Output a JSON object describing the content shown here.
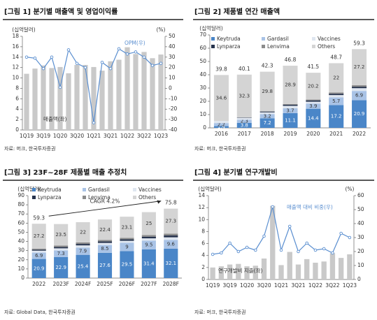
{
  "chart_data": [
    {
      "type": "combo",
      "title": "[그림 1] 분기별 매출액 및 영업이익률",
      "ylabel": "(십억달러)",
      "y2label": "(%)",
      "categories": [
        "1Q19",
        null,
        "3Q19",
        null,
        "1Q20",
        null,
        "3Q20",
        null,
        "1Q21",
        null,
        "3Q21",
        null,
        "1Q22",
        null,
        "3Q22",
        null,
        "1Q23"
      ],
      "series": [
        {
          "name": "매출액(좌)",
          "color": "#c9c9c9",
          "values": [
            10.8,
            11.8,
            12.4,
            11.9,
            12.1,
            10.9,
            12.5,
            12.5,
            12.1,
            11.4,
            13.2,
            13.5,
            15.9,
            14.6,
            15.0,
            13.8,
            14.5
          ]
        },
        {
          "name": "OPM(우)",
          "color": "#5b8fd0",
          "axis": "y2",
          "values": [
            30,
            29,
            19,
            30,
            1,
            37,
            24,
            20,
            -33,
            25,
            19,
            38,
            33,
            35,
            30,
            22,
            24
          ]
        }
      ],
      "ylim": [
        0,
        18
      ],
      "yticks": [
        0,
        2,
        4,
        6,
        8,
        10,
        12,
        14,
        16,
        18
      ],
      "y2lim": [
        -40,
        50
      ],
      "y2ticks": [
        -40,
        -30,
        -20,
        -10,
        0,
        10,
        20,
        30,
        40,
        50
      ],
      "source": "자료: 머크, 한국투자증권"
    },
    {
      "type": "stacked",
      "title": "[그림 2] 제품별 연간 매출액",
      "ylabel": "(십억달러)",
      "categories": [
        "2016",
        "2017",
        "2018",
        "2019",
        "2020",
        "2021",
        "2022"
      ],
      "series": [
        {
          "name": "Keytruda",
          "color": "#4a86c8",
          "show_labels": true,
          "values": [
            1.4,
            3.8,
            7.2,
            11.1,
            14.4,
            17.2,
            20.9
          ]
        },
        {
          "name": "Gardasil",
          "color": "#a9c3e6",
          "show_labels": true,
          "values": [
            2.2,
            2.3,
            3.2,
            3.7,
            3.9,
            5.7,
            6.9
          ]
        },
        {
          "name": "Vaccines",
          "color": "#dfe6f0",
          "values": [
            1.6,
            1.4,
            1.3,
            1.8,
            1.4,
            1.8,
            2.1
          ]
        },
        {
          "name": "Lynparza",
          "color": "#26334d",
          "values": [
            0,
            0.3,
            0.6,
            0.8,
            1.0,
            1.0,
            1.1
          ]
        },
        {
          "name": "Lenvima",
          "color": "#8c8c8c",
          "values": [
            0,
            0,
            0.2,
            0.5,
            0.6,
            1.0,
            1.1
          ]
        },
        {
          "name": "Others",
          "color": "#d4d4d4",
          "show_labels": true,
          "values": [
            34.6,
            32.3,
            29.8,
            28.9,
            20.2,
            22.0,
            27.2
          ]
        }
      ],
      "totals": [
        39.8,
        40.1,
        42.3,
        46.8,
        41.5,
        48.7,
        59.3
      ],
      "ylim": [
        0,
        70
      ],
      "yticks": [
        0,
        10,
        20,
        30,
        40,
        50,
        60,
        70
      ],
      "source": "자료: 머크, 한국투자증권"
    },
    {
      "type": "stacked",
      "title": "[그림 3] 23F~28F 제품별 매출 추정치",
      "ylabel": "(십억달러)",
      "annotation": "CAGR 4.2%",
      "categories": [
        "2022",
        "2023F",
        "2024F",
        "2025F",
        "2026F",
        "2027F",
        "2028F"
      ],
      "series": [
        {
          "name": "Keytruda",
          "color": "#4a86c8",
          "show_labels": true,
          "values": [
            20.9,
            22.9,
            25.4,
            27.6,
            29.5,
            31.4,
            32.1
          ]
        },
        {
          "name": "Gardasil",
          "color": "#a9c3e6",
          "show_labels": true,
          "values": [
            6.9,
            7.3,
            7.9,
            8.5,
            9.0,
            9.5,
            9.6
          ]
        },
        {
          "name": "Vaccines",
          "color": "#dfe6f0",
          "values": [
            2.1,
            2.3,
            2.4,
            2.3,
            2.2,
            2.5,
            2.8
          ]
        },
        {
          "name": "Lynparza",
          "color": "#26334d",
          "values": [
            1.1,
            1.4,
            1.6,
            1.6,
            1.6,
            1.8,
            2.0
          ]
        },
        {
          "name": "Lenvima",
          "color": "#8c8c8c",
          "values": [
            1.1,
            1.6,
            1.7,
            1.6,
            1.6,
            1.8,
            2.0
          ]
        },
        {
          "name": "Others",
          "color": "#d4d4d4",
          "show_labels": true,
          "values": [
            27.2,
            23.5,
            22.0,
            22.4,
            23.1,
            25.0,
            27.3
          ]
        }
      ],
      "totals": [
        59.3,
        null,
        null,
        null,
        null,
        null,
        75.8
      ],
      "ylim": [
        0,
        90
      ],
      "yticks": [
        0,
        10,
        20,
        30,
        40,
        50,
        60,
        70,
        80,
        90
      ],
      "source": "자료: Global Data, 한국투자증권"
    },
    {
      "type": "combo",
      "title": "[그림 4] 분기별 연구개발비",
      "ylabel": "(십억달러)",
      "y2label": "(%)",
      "categories": [
        "1Q19",
        null,
        "3Q19",
        null,
        "1Q20",
        null,
        "3Q20",
        null,
        "1Q21",
        null,
        "3Q21",
        null,
        "1Q22",
        null,
        "3Q22",
        null,
        "1Q23"
      ],
      "series": [
        {
          "name": "연구개발비 지출(좌)",
          "color": "#c9c9c9",
          "values": [
            2.0,
            2.2,
            2.5,
            2.6,
            2.2,
            2.3,
            3.5,
            12.3,
            2.4,
            4.6,
            2.5,
            3.4,
            2.8,
            3.0,
            4.4,
            3.6,
            4.2
          ]
        },
        {
          "name": "매출액 대비 비중(우)",
          "color": "#5b8fd0",
          "axis": "y2",
          "values": [
            18,
            19,
            26,
            20,
            23,
            21,
            31,
            52,
            21,
            38,
            20,
            26,
            21,
            22,
            19,
            33,
            30
          ]
        }
      ],
      "ylim": [
        0,
        14
      ],
      "yticks": [
        0,
        2,
        4,
        6,
        8,
        10,
        12,
        14
      ],
      "y2lim": [
        0,
        60
      ],
      "y2ticks": [
        0,
        10,
        20,
        30,
        40,
        50,
        60
      ],
      "source": "자료: 머크, 한국투자증권"
    }
  ]
}
